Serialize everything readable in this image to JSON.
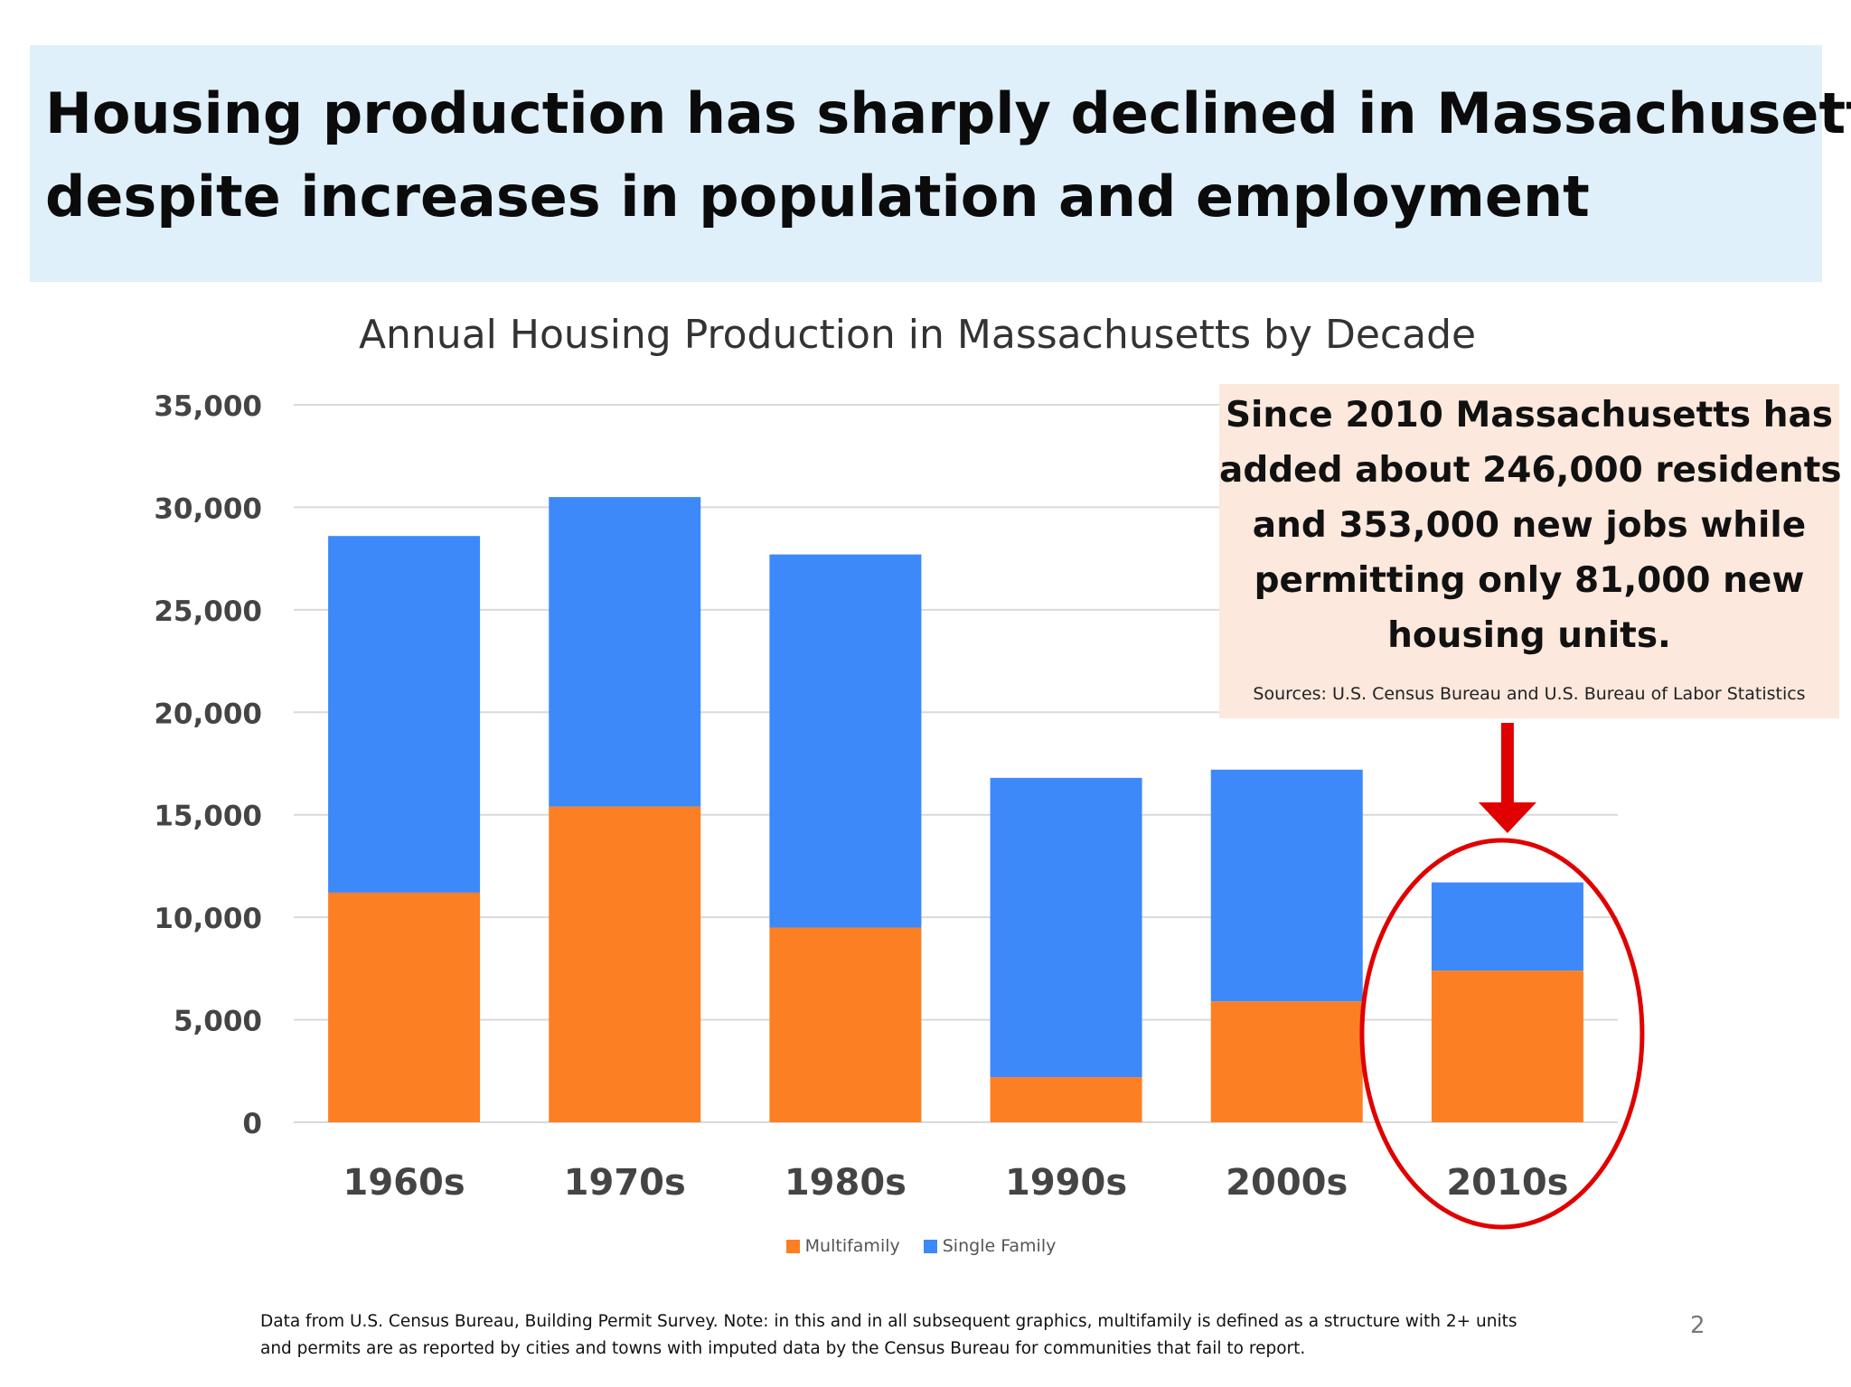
{
  "slide": {
    "headline_lines": [
      "Housing production has sharply declined in Massachusetts",
      "despite increases in population and employment"
    ],
    "page_number": "2"
  },
  "callout": {
    "lines": [
      "Since 2010 Massachusetts has",
      "added about 246,000 residents",
      "and 353,000 new jobs while",
      "permitting only 81,000 new",
      "housing units."
    ],
    "source": "Sources: U.S. Census Bureau and U.S. Bureau of Labor Statistics",
    "background_color": "#fce8dc"
  },
  "annotation": {
    "arrow_color": "#e00000",
    "ellipse_color": "#e00000",
    "highlighted_category": "2010s"
  },
  "footnote_lines": [
    "Data from U.S. Census Bureau, Building Permit Survey.  Note: in this and in all subsequent graphics, multifamily is defined as a structure with 2+ units",
    "and permits are as reported by cities and towns with imputed data by the Census Bureau for communities that fail to report."
  ],
  "chart_data": {
    "type": "bar",
    "stacked": true,
    "title": "Annual Housing Production in Massachusetts by Decade",
    "xlabel": "",
    "ylabel": "",
    "categories": [
      "1960s",
      "1970s",
      "1980s",
      "1990s",
      "2000s",
      "2010s"
    ],
    "series": [
      {
        "name": "Multifamily",
        "color": "#fd7f23",
        "values": [
          11200,
          15400,
          9500,
          2200,
          5900,
          7400
        ]
      },
      {
        "name": "Single Family",
        "color": "#3d89fa",
        "values": [
          17400,
          15100,
          18200,
          14600,
          11300,
          4300
        ]
      }
    ],
    "ylim": [
      0,
      35000
    ],
    "yticks": [
      0,
      5000,
      10000,
      15000,
      20000,
      25000,
      30000,
      35000
    ],
    "ytick_labels": [
      "0",
      "5,000",
      "10,000",
      "15,000",
      "20,000",
      "25,000",
      "30,000",
      "35,000"
    ],
    "grid": true,
    "legend_position": "bottom-center"
  }
}
